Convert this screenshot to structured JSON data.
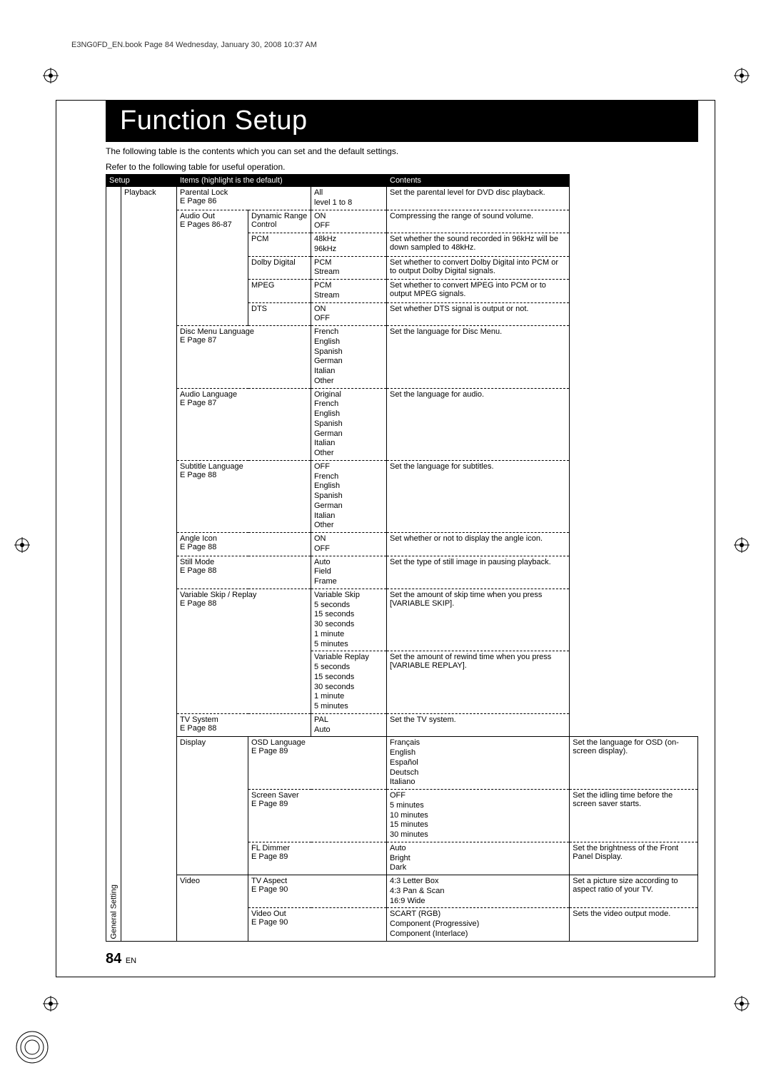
{
  "header_filename": "E3NG0FD_EN.book  Page 84  Wednesday, January 30, 2008  10:37 AM",
  "title": "Function Setup",
  "intro_line1": "The following table is the contents which you can set and the default settings.",
  "intro_line2": "Refer to the following table for useful operation.",
  "table_headers": {
    "setup": "Setup",
    "items": "Items (highlight is the default)",
    "contents": "Contents"
  },
  "side_label": "General Setting",
  "page_number": "84",
  "page_suffix": "EN",
  "rows": {
    "playback_label": "Playback",
    "display_label": "Display",
    "video_label": "Video",
    "parental_lock": {
      "item": "Parental Lock",
      "ref": "E  Page 86",
      "options": "All\nlevel 1 to 8",
      "contents": "Set the parental level for DVD disc playback."
    },
    "audio_out": {
      "item": "Audio Out",
      "ref": "E  Pages 86-87"
    },
    "dynamic_range": {
      "sub": "Dynamic Range Control",
      "options": "ON\nOFF",
      "contents": "Compressing the range of sound volume."
    },
    "pcm": {
      "sub": "PCM",
      "options": "48kHz\n96kHz",
      "contents": "Set whether the sound recorded in 96kHz will be down sampled to 48kHz."
    },
    "dolby": {
      "sub": "Dolby Digital",
      "options": "PCM\nStream",
      "contents": "Set whether to convert Dolby Digital into PCM or to output Dolby Digital signals."
    },
    "mpeg": {
      "sub": "MPEG",
      "options": "PCM\nStream",
      "contents": "Set whether to convert MPEG into PCM or to output MPEG signals."
    },
    "dts": {
      "sub": "DTS",
      "options": "ON\nOFF",
      "contents": "Set whether DTS signal is output or not."
    },
    "disc_menu_lang": {
      "item": "Disc Menu Language",
      "ref": "E  Page 87",
      "options": "French\nEnglish\nSpanish\nGerman\nItalian\nOther",
      "contents": "Set the language for Disc Menu."
    },
    "audio_lang": {
      "item": "Audio Language",
      "ref": "E  Page 87",
      "options": "Original\nFrench\nEnglish\nSpanish\nGerman\nItalian\nOther",
      "contents": "Set the language for audio."
    },
    "subtitle_lang": {
      "item": "Subtitle Language",
      "ref": "E  Page 88",
      "options": "OFF\nFrench\nEnglish\nSpanish\nGerman\nItalian\nOther",
      "contents": "Set the language for subtitles."
    },
    "angle_icon": {
      "item": "Angle Icon",
      "ref": "E  Page 88",
      "options": "ON\nOFF",
      "contents": "Set whether or not to display the angle icon."
    },
    "still_mode": {
      "item": "Still Mode",
      "ref": "E  Page 88",
      "options": "Auto\nField\nFrame",
      "contents": "Set the type of still image in pausing playback."
    },
    "variable_skip": {
      "item": "Variable Skip / Replay",
      "ref": "E  Page 88",
      "options": "Variable Skip\n5 seconds\n15 seconds\n30 seconds\n1 minute\n5 minutes",
      "contents": "Set the amount of skip time when you press [VARIABLE SKIP]."
    },
    "variable_replay": {
      "options": "Variable Replay\n5 seconds\n15 seconds\n30 seconds\n1 minute\n5 minutes",
      "contents": "Set the amount of rewind time when you press [VARIABLE REPLAY]."
    },
    "tv_system": {
      "item": "TV System",
      "ref": "E  Page 88",
      "options": "PAL\nAuto",
      "contents": "Set the TV system."
    },
    "osd_lang": {
      "item": "OSD Language",
      "ref": "E  Page 89",
      "options": "Français\nEnglish\nEspañol\nDeutsch\nItaliano",
      "contents": "Set the language for OSD (on-screen display)."
    },
    "screen_saver": {
      "item": "Screen Saver",
      "ref": "E  Page 89",
      "options": "OFF\n5 minutes\n10 minutes\n15 minutes\n30 minutes",
      "contents": "Set the idling time before the screen saver starts."
    },
    "fl_dimmer": {
      "item": "FL Dimmer",
      "ref": "E  Page 89",
      "options": "Auto\nBright\nDark",
      "contents": "Set the brightness of the Front Panel Display."
    },
    "tv_aspect": {
      "item": "TV Aspect",
      "ref": "E  Page 90",
      "options": "4:3 Letter Box\n4:3 Pan & Scan\n16:9 Wide",
      "contents": "Set a picture size according to aspect ratio of your TV."
    },
    "video_out": {
      "item": "Video Out",
      "ref": "E  Page 90",
      "options": "SCART (RGB)\nComponent (Progressive)\nComponent (Interlace)",
      "contents": "Sets the video output mode."
    }
  },
  "colors": {
    "bg": "#ffffff",
    "fg": "#000000",
    "header_bg": "#000000",
    "header_fg": "#ffffff"
  }
}
